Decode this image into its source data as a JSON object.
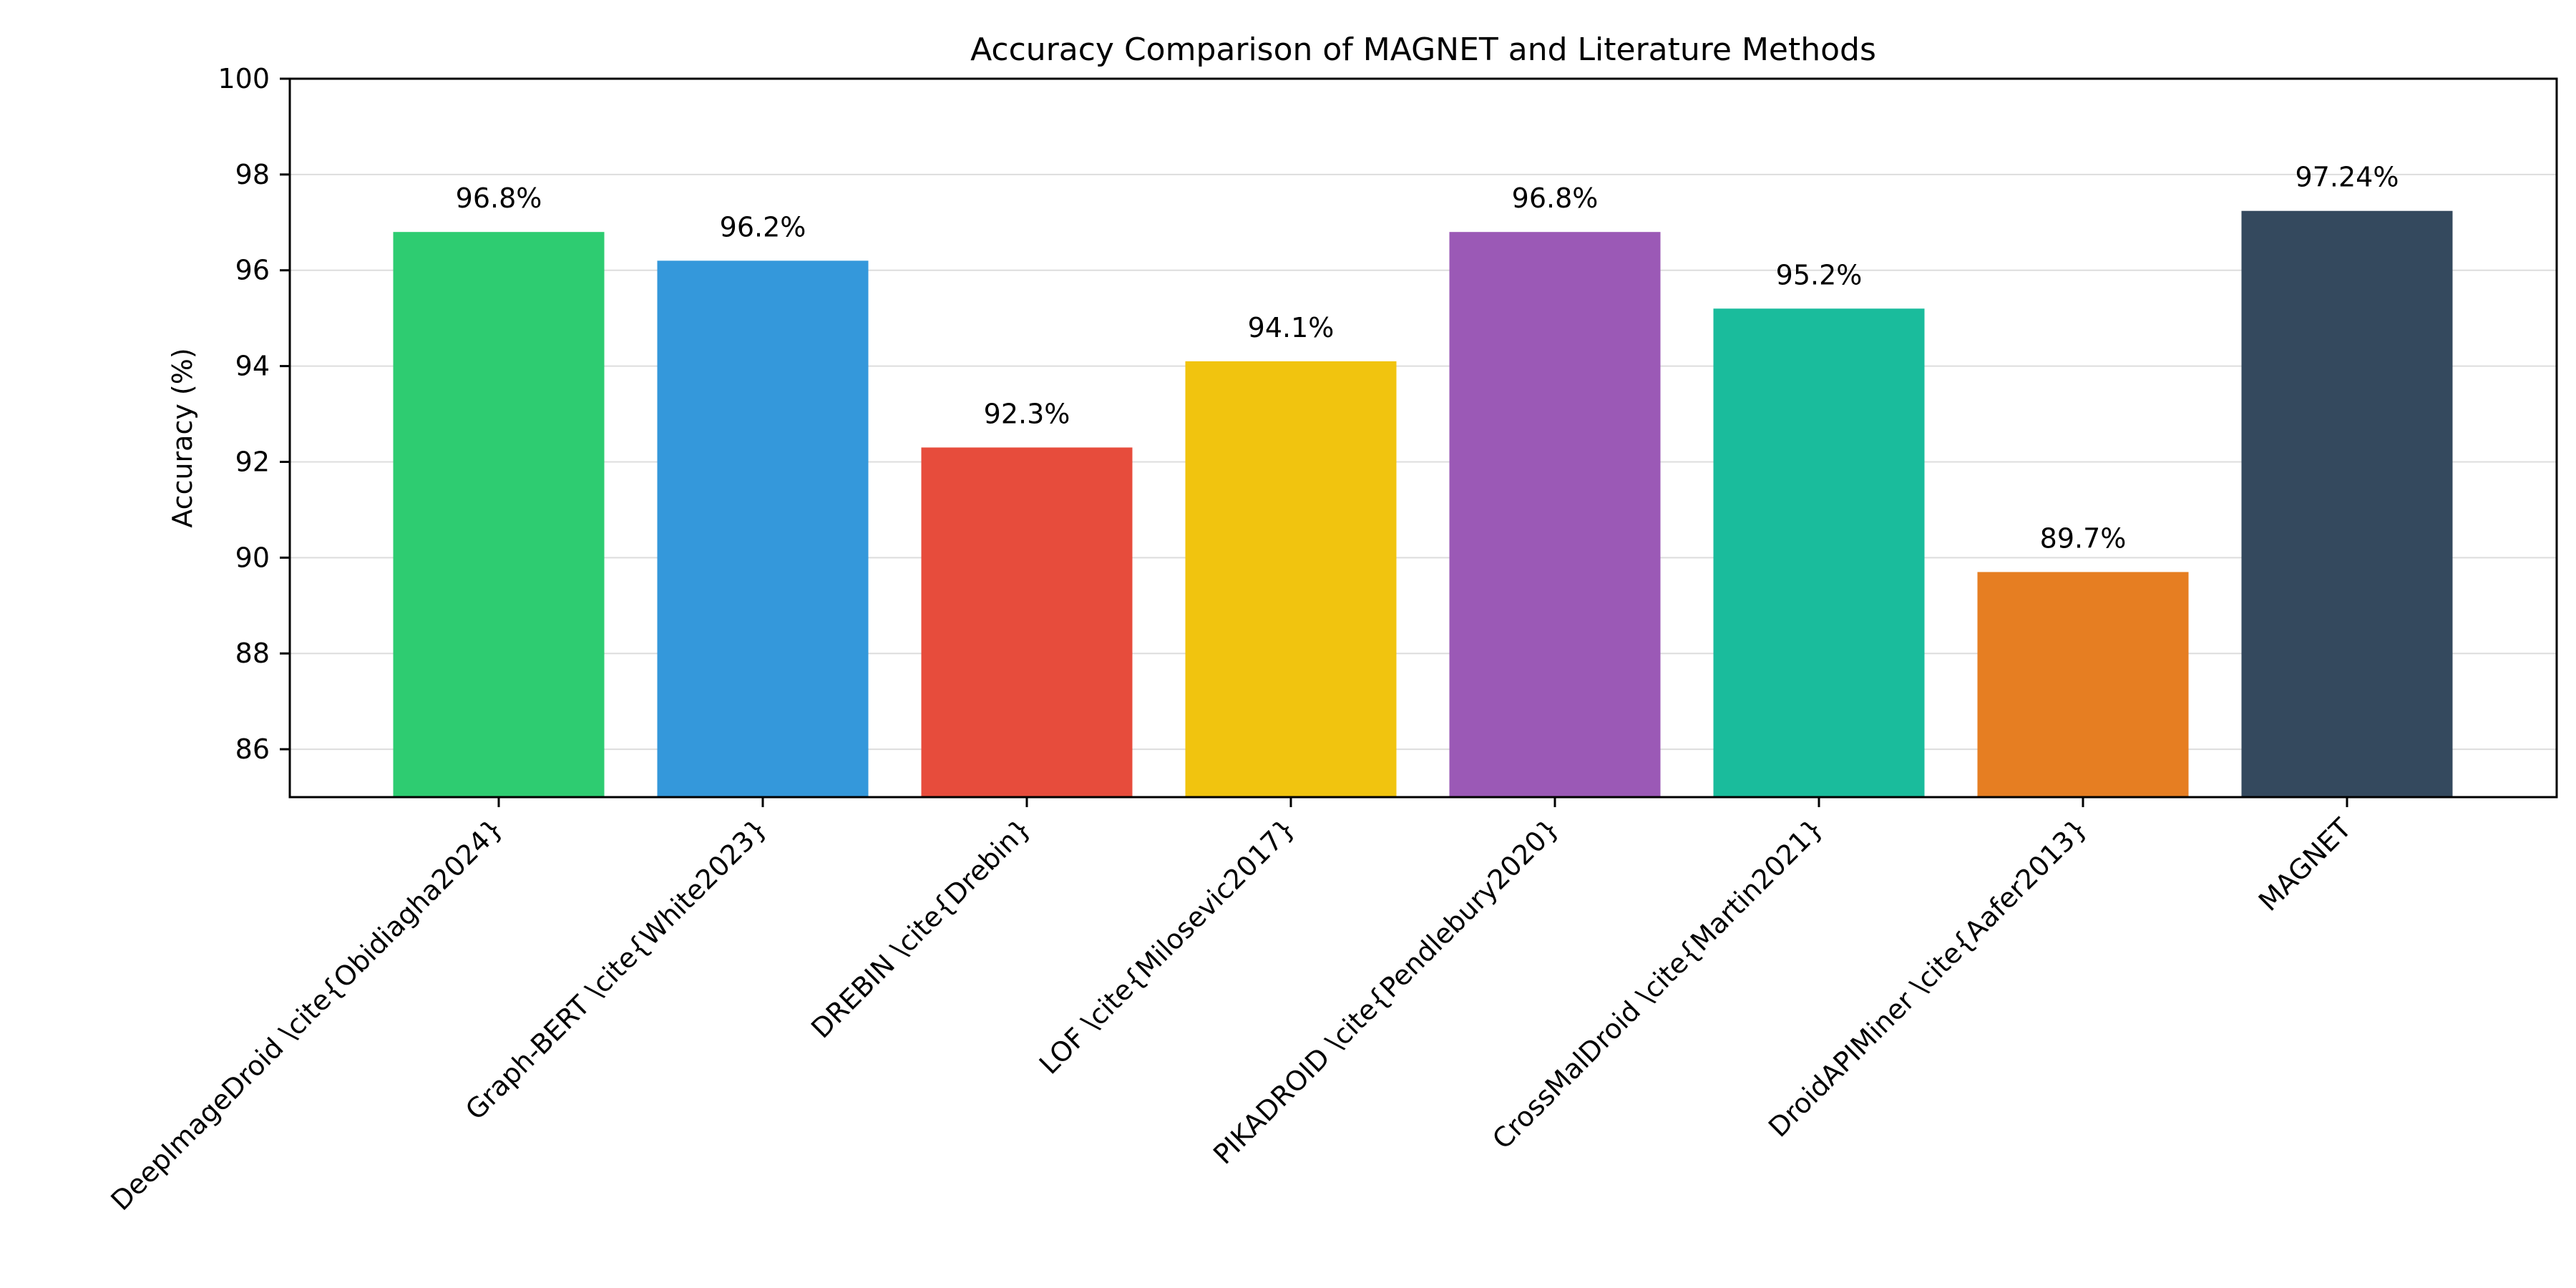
{
  "chart_data": {
    "type": "bar",
    "title": "Accuracy Comparison of MAGNET and Literature Methods",
    "xlabel": "",
    "ylabel": "Accuracy (%)",
    "ylim": [
      85,
      100
    ],
    "yticks": [
      86,
      88,
      90,
      92,
      94,
      96,
      98,
      100
    ],
    "grid": "y",
    "categories": [
      "DeepImageDroid \\cite{Obidiagha2024}",
      "Graph-BERT \\cite{White2023}",
      "DREBIN \\cite{Drebin}",
      "LOF \\cite{Milosevic2017}",
      "PIKADROID \\cite{Pendlebury2020}",
      "CrossMalDroid \\cite{Martin2021}",
      "DroidAPIMiner \\cite{Aafer2013}",
      "MAGNET"
    ],
    "values": [
      96.8,
      96.2,
      92.3,
      94.1,
      96.8,
      95.2,
      89.7,
      97.24
    ],
    "value_labels": [
      "96.8%",
      "96.2%",
      "92.3%",
      "94.1%",
      "96.8%",
      "95.2%",
      "89.7%",
      "97.24%"
    ],
    "colors": [
      "#2ecc71",
      "#3498db",
      "#e74c3c",
      "#f1c40f",
      "#9b59b6",
      "#1abc9c",
      "#e67e22",
      "#34495e"
    ]
  }
}
